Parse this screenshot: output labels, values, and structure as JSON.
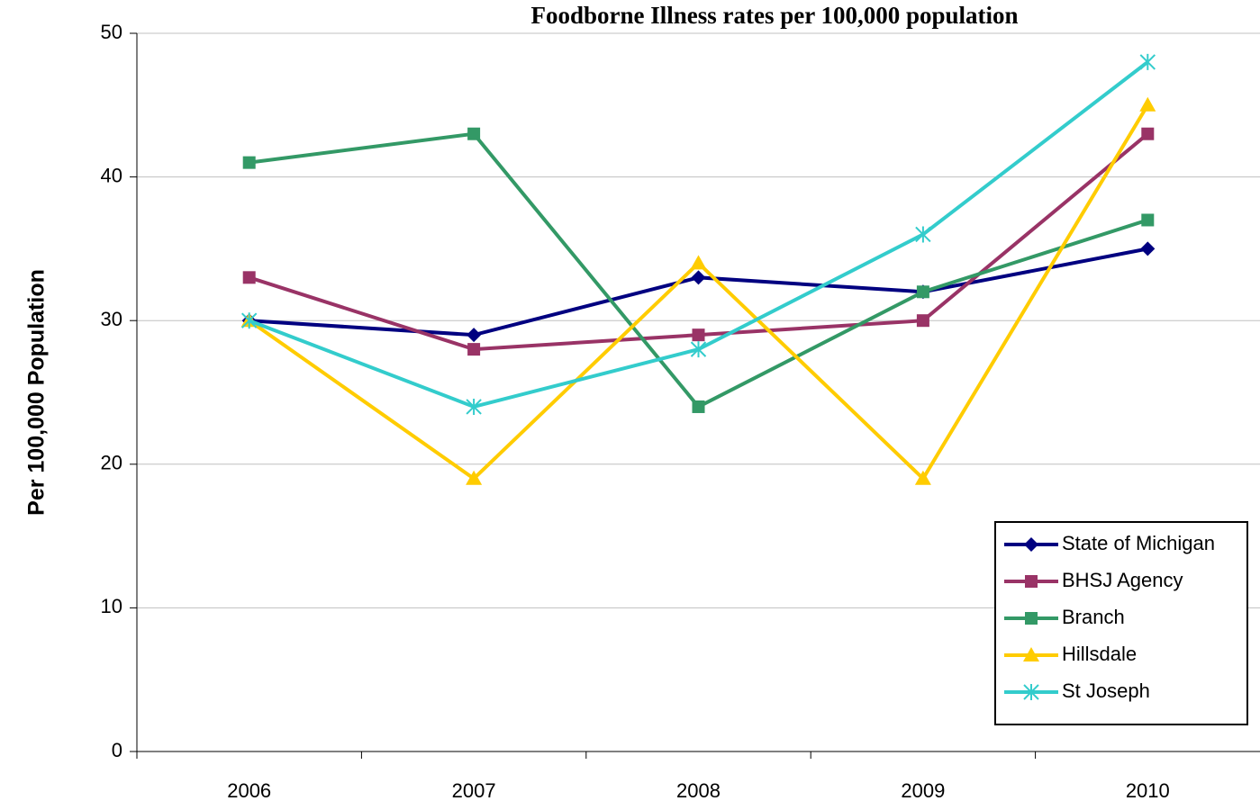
{
  "chart_data": {
    "type": "line",
    "title": "Foodborne Illness rates per 100,000 population",
    "y_label": "Per 100,000 Population",
    "categories": [
      "2006",
      "2007",
      "2008",
      "2009",
      "2010"
    ],
    "series": [
      {
        "name": "State of Michigan",
        "color": "#000080",
        "marker": "diamond",
        "values": [
          30,
          29,
          33,
          32,
          35
        ]
      },
      {
        "name": "BHSJ Agency",
        "color": "#993366",
        "marker": "square",
        "values": [
          33,
          28,
          29,
          30,
          43
        ]
      },
      {
        "name": "Branch",
        "color": "#339966",
        "marker": "square",
        "values": [
          41,
          43,
          24,
          32,
          37
        ]
      },
      {
        "name": "Hillsdale",
        "color": "#FFCC00",
        "marker": "triangle",
        "values": [
          30,
          19,
          34,
          19,
          45
        ]
      },
      {
        "name": "St Joseph",
        "color": "#33CCCC",
        "marker": "star",
        "values": [
          30,
          24,
          28,
          36,
          48
        ]
      }
    ],
    "ylim": [
      0,
      50
    ],
    "yticks": [
      0,
      10,
      20,
      30,
      40,
      50
    ],
    "grid": true,
    "legend": "lower right"
  }
}
